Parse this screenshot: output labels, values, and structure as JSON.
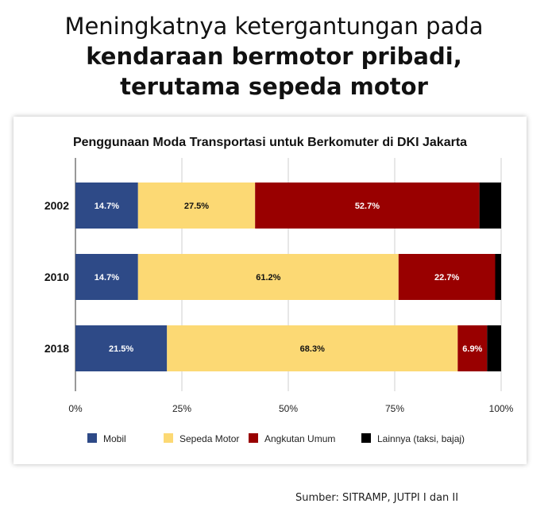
{
  "headline": {
    "line1": "Meningkatnya ketergantungan pada",
    "line2": "kendaraan bermotor pribadi,",
    "line3": "terutama sepeda motor"
  },
  "source": "Sumber: SITRAMP, JUTPI I dan II",
  "chart_data": {
    "type": "bar",
    "orientation": "horizontal",
    "stacked": true,
    "title": "Penggunaan Moda Transportasi untuk Berkomuter di DKI Jakarta",
    "categories": [
      "2002",
      "2010",
      "2018"
    ],
    "x_ticks": [
      "0%",
      "25%",
      "50%",
      "75%",
      "100%"
    ],
    "xlim": [
      0,
      100
    ],
    "grid": true,
    "legend_position": "bottom",
    "series": [
      {
        "name": "Mobil",
        "color": "#2e4a87",
        "values": [
          14.7,
          14.7,
          21.5
        ],
        "labels": [
          "14.7%",
          "14.7%",
          "21.5%"
        ],
        "label_color": "#ffffff"
      },
      {
        "name": "Sepeda Motor",
        "color": "#fcd974",
        "values": [
          27.5,
          61.2,
          68.3
        ],
        "labels": [
          "27.5%",
          "61.2%",
          "68.3%"
        ],
        "label_color": "#111111"
      },
      {
        "name": "Angkutan Umum",
        "color": "#990000",
        "values": [
          52.7,
          22.7,
          6.9
        ],
        "labels": [
          "52.7%",
          "22.7%",
          "6.9%"
        ],
        "label_color": "#ffffff"
      },
      {
        "name": "Lainnya (taksi, bajaj)",
        "color": "#000000",
        "values": [
          5.1,
          1.4,
          3.3
        ],
        "labels": [
          "",
          "",
          ""
        ],
        "label_color": "#ffffff"
      }
    ]
  }
}
